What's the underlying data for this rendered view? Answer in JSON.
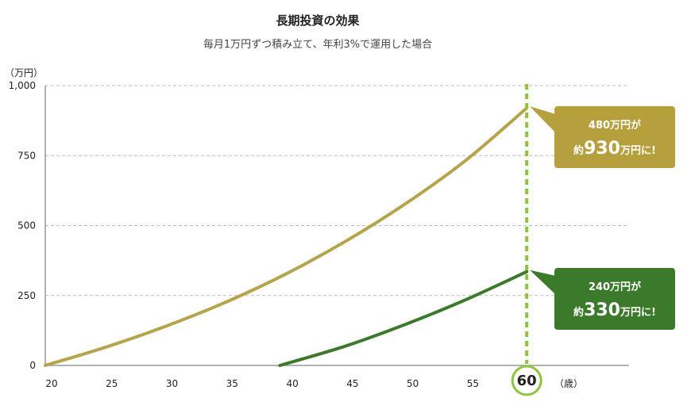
{
  "chart_data": {
    "type": "line",
    "title": "長期投資の効果",
    "subtitle": "毎月1万円ずつ積み立て、年利3%で運用した場合",
    "y_unit": "（万円）",
    "x_unit": "（歳）",
    "xlim": [
      20,
      68.5
    ],
    "ylim": [
      0,
      1000
    ],
    "x_ticks": [
      {
        "value": 20,
        "label": "20"
      },
      {
        "value": 25,
        "label": "25"
      },
      {
        "value": 30,
        "label": "30"
      },
      {
        "value": 35,
        "label": "35"
      },
      {
        "value": 40,
        "label": "40"
      },
      {
        "value": 45,
        "label": "45"
      },
      {
        "value": 50,
        "label": "50"
      },
      {
        "value": 55,
        "label": "55"
      }
    ],
    "y_ticks": [
      {
        "value": 0,
        "label": "0"
      },
      {
        "value": 250,
        "label": "250"
      },
      {
        "value": 500,
        "label": "500"
      },
      {
        "value": 750,
        "label": "750"
      },
      {
        "value": 1000,
        "label": "1,000"
      }
    ],
    "highlight": {
      "x": 60,
      "label": "60",
      "color": "#8cc63f"
    },
    "series": [
      {
        "color": "#b5a44c",
        "x": [
          20,
          25,
          30,
          35,
          40,
          45,
          50,
          55,
          60
        ],
        "y": [
          0,
          65,
          140,
          226,
          327,
          445,
          580,
          735,
          920
        ],
        "callout": {
          "line1": "480万円が",
          "prefix": "約",
          "big": "930",
          "suffix": "万円に!",
          "color": "#b5a03d"
        }
      },
      {
        "color": "#3a7a2a",
        "x": [
          39.5,
          45,
          50,
          55,
          60
        ],
        "y": [
          0,
          70,
          148,
          236,
          335
        ],
        "callout": {
          "line1": "240万円が",
          "prefix": "約",
          "big": "330",
          "suffix": "万円に!",
          "color": "#3a7a2a"
        }
      }
    ]
  }
}
